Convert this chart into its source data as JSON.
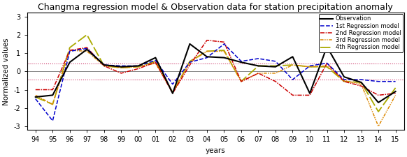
{
  "title": "Changma regression model & Observation data for station precipitation anomaly",
  "xlabel": "years",
  "ylabel": "Normalized values",
  "year_labels": [
    "94",
    "95",
    "96",
    "97",
    "98",
    "99",
    "00",
    "01",
    "02",
    "03",
    "04",
    "05",
    "06",
    "07",
    "08",
    "09",
    "10",
    "11",
    "12",
    "13",
    "14",
    "15"
  ],
  "obs": [
    -1.4,
    -1.3,
    0.5,
    1.2,
    0.35,
    0.25,
    0.3,
    0.75,
    -1.2,
    1.5,
    0.8,
    0.75,
    0.5,
    0.3,
    0.25,
    0.8,
    -1.2,
    1.35,
    -0.3,
    -0.6,
    -1.7,
    -1.1
  ],
  "model1": [
    -1.5,
    -2.7,
    1.1,
    1.25,
    0.35,
    0.3,
    0.3,
    0.6,
    -0.7,
    0.5,
    0.75,
    1.5,
    0.55,
    0.7,
    0.55,
    -0.45,
    0.3,
    0.45,
    -0.45,
    -0.45,
    -0.55,
    -0.55
  ],
  "model2": [
    -1.0,
    -1.0,
    1.15,
    1.3,
    0.3,
    -0.1,
    0.15,
    0.5,
    -1.2,
    0.35,
    1.7,
    1.6,
    -0.55,
    -0.1,
    -0.55,
    -1.3,
    -1.3,
    0.45,
    -0.55,
    -0.8,
    -1.3,
    -1.2
  ],
  "model3": [
    -1.3,
    -1.8,
    1.15,
    1.1,
    0.3,
    0.2,
    0.25,
    0.45,
    -1.15,
    0.5,
    1.1,
    1.1,
    -0.55,
    -0.1,
    -0.1,
    0.35,
    0.25,
    0.3,
    -0.5,
    -0.7,
    -3.0,
    -1.3
  ],
  "model4": [
    -1.4,
    -1.8,
    1.3,
    2.0,
    0.3,
    0.2,
    0.25,
    0.55,
    -1.15,
    0.55,
    1.1,
    1.15,
    -0.55,
    0.3,
    0.3,
    0.35,
    0.25,
    0.25,
    -0.55,
    -0.6,
    -2.2,
    -0.9
  ],
  "threshold": 0.43,
  "obs_color": "#000000",
  "model1_color": "#0000CC",
  "model2_color": "#CC0000",
  "model3_color": "#DD8800",
  "model4_color": "#AAAA00",
  "hline_color": "#CC3366",
  "zero_color": "#888888",
  "ylim": [
    -3.2,
    3.2
  ],
  "legend_fontsize": 6.0,
  "title_fontsize": 9.0,
  "tick_fontsize": 7,
  "axis_label_fontsize": 7.5
}
